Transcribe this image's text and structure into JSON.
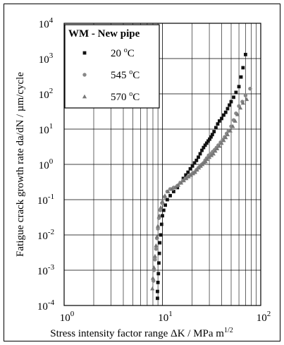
{
  "chart_data": {
    "type": "scatter",
    "xlabel": "Stress intensity factor range ΔK / MPa m",
    "xlabel_sup": "1/2",
    "ylabel": "Fatigue crack growth rate da/dN / µm/cycle",
    "xscale": "log",
    "yscale": "log",
    "xlim": [
      1,
      100
    ],
    "ylim": [
      0.0001,
      10000
    ],
    "grid": true,
    "x_ticks": [
      {
        "value": 1,
        "base": "10",
        "exp": "0"
      },
      {
        "value": 10,
        "base": "10",
        "exp": "1"
      },
      {
        "value": 100,
        "base": "10",
        "exp": "2"
      }
    ],
    "y_ticks": [
      {
        "value": 0.0001,
        "base": "10",
        "exp": "-4"
      },
      {
        "value": 0.001,
        "base": "10",
        "exp": "-3"
      },
      {
        "value": 0.01,
        "base": "10",
        "exp": "-2"
      },
      {
        "value": 0.1,
        "base": "10",
        "exp": "-1"
      },
      {
        "value": 1,
        "base": "10",
        "exp": "0"
      },
      {
        "value": 10,
        "base": "10",
        "exp": "1"
      },
      {
        "value": 100,
        "base": "10",
        "exp": "2"
      },
      {
        "value": 1000,
        "base": "10",
        "exp": "3"
      },
      {
        "value": 10000,
        "base": "10",
        "exp": "4"
      }
    ],
    "legend": {
      "title": "WM - New pipe",
      "placement": "top-left"
    },
    "series": [
      {
        "name": "20 °C",
        "label_num": "20",
        "label_unit": "oC",
        "marker": "square",
        "color": "#111111",
        "points": [
          [
            8.9,
            0.00016
          ],
          [
            8.9,
            0.00025
          ],
          [
            9.0,
            0.00045
          ],
          [
            9.1,
            0.0008
          ],
          [
            9.2,
            0.0016
          ],
          [
            9.3,
            0.003
          ],
          [
            9.4,
            0.006
          ],
          [
            9.6,
            0.01
          ],
          [
            9.8,
            0.02
          ],
          [
            10.0,
            0.035
          ],
          [
            10.3,
            0.05
          ],
          [
            10.7,
            0.07
          ],
          [
            11.2,
            0.1
          ],
          [
            12.0,
            0.13
          ],
          [
            13.0,
            0.17
          ],
          [
            14.2,
            0.22
          ],
          [
            15.3,
            0.3
          ],
          [
            16.3,
            0.4
          ],
          [
            17.3,
            0.5
          ],
          [
            18.2,
            0.6
          ],
          [
            19.2,
            0.75
          ],
          [
            20.2,
            0.9
          ],
          [
            21.2,
            1.1
          ],
          [
            22.2,
            1.3
          ],
          [
            23.2,
            1.6
          ],
          [
            24.2,
            2.0
          ],
          [
            25.2,
            2.5
          ],
          [
            26.2,
            3.0
          ],
          [
            27.2,
            3.5
          ],
          [
            28.2,
            4.0
          ],
          [
            29.2,
            4.6
          ],
          [
            30.2,
            5.2
          ],
          [
            31.2,
            6.0
          ],
          [
            32.2,
            7.0
          ],
          [
            33.5,
            8.5
          ],
          [
            35.0,
            11
          ],
          [
            36.5,
            14
          ],
          [
            38.0,
            17
          ],
          [
            40.0,
            20
          ],
          [
            42.0,
            25
          ],
          [
            44.0,
            30
          ],
          [
            46.0,
            38
          ],
          [
            48.0,
            48
          ],
          [
            50.0,
            60
          ],
          [
            53.0,
            80
          ],
          [
            56.0,
            110
          ],
          [
            60.0,
            160
          ],
          [
            63.0,
            300
          ],
          [
            66.0,
            550
          ],
          [
            70.0,
            1300
          ]
        ]
      },
      {
        "name": "545 °C",
        "label_num": "545",
        "label_unit": "oC",
        "marker": "circle",
        "color": "#888888",
        "points": [
          [
            8.1,
            0.0005
          ],
          [
            8.2,
            0.001
          ],
          [
            8.4,
            0.002
          ],
          [
            8.6,
            0.004
          ],
          [
            8.8,
            0.008
          ],
          [
            9.0,
            0.015
          ],
          [
            9.2,
            0.03
          ],
          [
            9.5,
            0.05
          ],
          [
            9.9,
            0.08
          ],
          [
            10.5,
            0.12
          ],
          [
            11.2,
            0.17
          ],
          [
            12.0,
            0.2
          ],
          [
            13.0,
            0.22
          ],
          [
            14.2,
            0.25
          ],
          [
            15.2,
            0.3
          ],
          [
            16.2,
            0.35
          ],
          [
            17.2,
            0.4
          ],
          [
            18.2,
            0.45
          ],
          [
            19.2,
            0.5
          ],
          [
            20.2,
            0.55
          ],
          [
            21.2,
            0.6
          ],
          [
            22.2,
            0.7
          ],
          [
            23.2,
            0.8
          ],
          [
            24.2,
            0.9
          ],
          [
            25.2,
            1.0
          ],
          [
            26.2,
            1.1
          ],
          [
            27.2,
            1.3
          ],
          [
            28.2,
            1.5
          ],
          [
            29.5,
            1.8
          ],
          [
            31.0,
            2.0
          ],
          [
            32.5,
            2.3
          ],
          [
            34.0,
            2.6
          ],
          [
            35.5,
            3.0
          ],
          [
            37.0,
            3.5
          ],
          [
            39.0,
            4.2
          ],
          [
            41.0,
            5.0
          ],
          [
            43.0,
            6.0
          ],
          [
            45.0,
            7.5
          ],
          [
            47.0,
            9.0
          ],
          [
            50.0,
            12
          ],
          [
            53.0,
            18
          ],
          [
            56.0,
            28
          ],
          [
            60.0,
            45
          ],
          [
            65.0,
            60
          ],
          [
            70.0,
            90
          ],
          [
            78.0,
            140
          ]
        ]
      },
      {
        "name": "570 °C",
        "label_num": "570",
        "label_unit": "oC",
        "marker": "triangle",
        "color": "#777777",
        "points": [
          [
            7.9,
            0.0003
          ],
          [
            8.0,
            0.0006
          ],
          [
            8.2,
            0.0012
          ],
          [
            8.4,
            0.0025
          ],
          [
            8.6,
            0.005
          ],
          [
            8.8,
            0.009
          ],
          [
            9.0,
            0.018
          ],
          [
            9.3,
            0.035
          ],
          [
            9.6,
            0.06
          ],
          [
            10.0,
            0.09
          ],
          [
            10.6,
            0.13
          ],
          [
            11.4,
            0.17
          ],
          [
            12.5,
            0.2
          ],
          [
            13.5,
            0.22
          ],
          [
            14.5,
            0.26
          ],
          [
            15.5,
            0.3
          ],
          [
            16.5,
            0.35
          ],
          [
            17.5,
            0.4
          ],
          [
            18.5,
            0.45
          ],
          [
            19.5,
            0.5
          ],
          [
            20.5,
            0.55
          ],
          [
            21.5,
            0.6
          ],
          [
            22.5,
            0.7
          ],
          [
            23.5,
            0.8
          ],
          [
            24.5,
            0.9
          ],
          [
            25.5,
            1.0
          ],
          [
            26.5,
            1.1
          ],
          [
            27.5,
            1.2
          ],
          [
            28.5,
            1.4
          ],
          [
            30.0,
            1.6
          ],
          [
            31.5,
            1.8
          ],
          [
            33.0,
            2.0
          ],
          [
            34.5,
            2.4
          ],
          [
            36.0,
            2.8
          ],
          [
            38.0,
            3.3
          ],
          [
            40.0,
            4.0
          ],
          [
            42.0,
            4.8
          ],
          [
            44.0,
            5.8
          ],
          [
            46.0,
            7.0
          ],
          [
            49.0,
            9.0
          ],
          [
            52.0,
            12
          ],
          [
            55.0,
            17
          ],
          [
            58.0,
            26
          ],
          [
            62.0,
            40
          ],
          [
            66.0,
            55
          ],
          [
            72.0,
            70
          ]
        ]
      }
    ]
  }
}
